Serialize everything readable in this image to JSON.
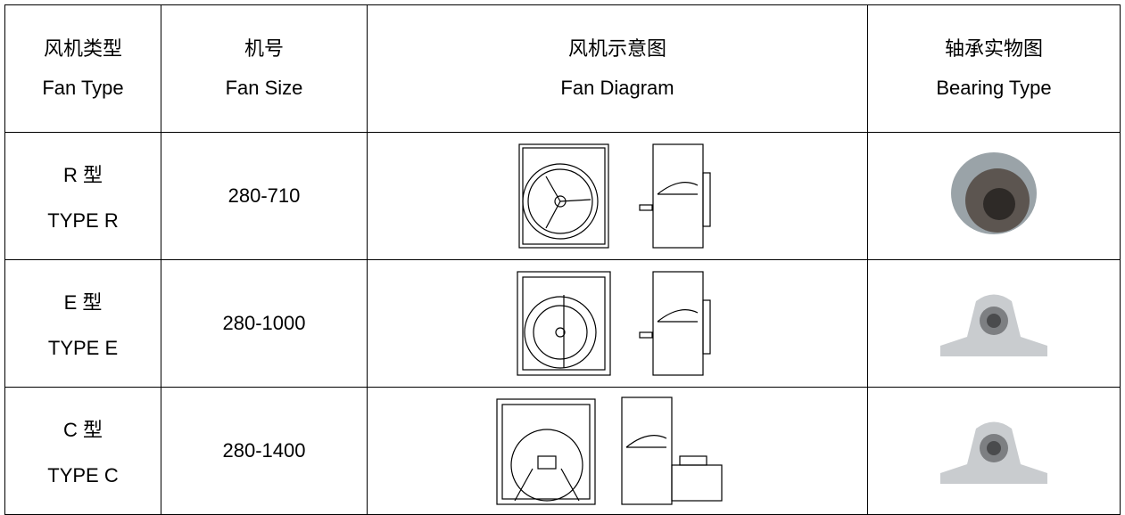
{
  "header": {
    "columns": [
      {
        "zh": "风机类型",
        "en": "Fan Type"
      },
      {
        "zh": "机号",
        "en": "Fan Size"
      },
      {
        "zh": "风机示意图",
        "en": "Fan Diagram"
      },
      {
        "zh": "轴承实物图",
        "en": "Bearing Type"
      }
    ]
  },
  "table": {
    "rows": [
      {
        "type_zh": "R 型",
        "type_en": "TYPE R",
        "size": "280-710"
      },
      {
        "type_zh": "E 型",
        "type_en": "TYPE E",
        "size": "280-1000"
      },
      {
        "type_zh": "C 型",
        "type_en": "TYPE C",
        "size": "280-1400"
      }
    ]
  }
}
